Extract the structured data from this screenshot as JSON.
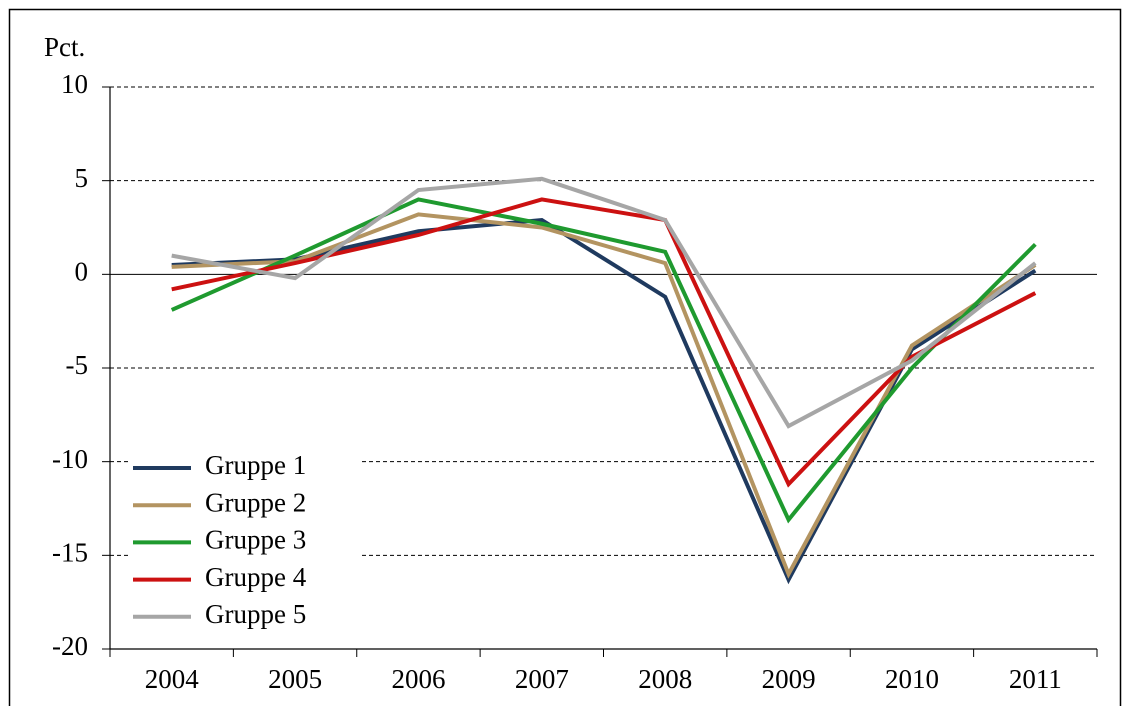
{
  "chart_data": {
    "type": "line",
    "y_label": "Pct.",
    "categories": [
      "2004",
      "2005",
      "2006",
      "2007",
      "2008",
      "2009",
      "2010",
      "2011"
    ],
    "series": [
      {
        "name": "Gruppe 1",
        "color": "#1f3a5f",
        "values": [
          0.5,
          0.8,
          2.3,
          2.9,
          -1.2,
          -16.3,
          -4.0,
          0.2
        ]
      },
      {
        "name": "Gruppe 2",
        "color": "#b39461",
        "values": [
          0.4,
          0.7,
          3.2,
          2.5,
          0.6,
          -16.0,
          -3.8,
          0.5
        ]
      },
      {
        "name": "Gruppe 3",
        "color": "#1f9a2f",
        "values": [
          -1.9,
          1.0,
          4.0,
          2.7,
          1.2,
          -13.1,
          -5.0,
          1.6
        ]
      },
      {
        "name": "Gruppe 4",
        "color": "#cc1111",
        "values": [
          -0.8,
          0.6,
          2.1,
          4.0,
          2.9,
          -11.2,
          -4.4,
          -1.0
        ]
      },
      {
        "name": "Gruppe 5",
        "color": "#a6a6a6",
        "values": [
          1.0,
          -0.2,
          4.5,
          5.1,
          2.9,
          -8.1,
          -4.6,
          0.6
        ]
      }
    ],
    "ylim": [
      -20,
      10
    ],
    "yticks": [
      10,
      5,
      0,
      -5,
      -10,
      -15,
      -20
    ],
    "grid": true,
    "legend": "lower left"
  }
}
